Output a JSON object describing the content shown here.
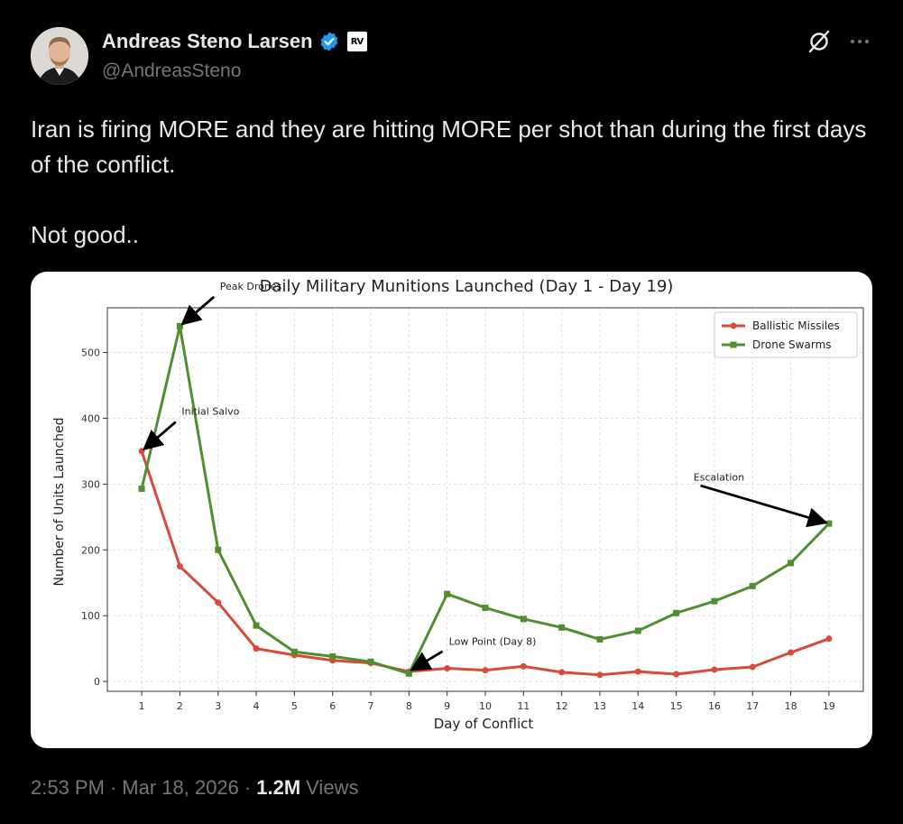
{
  "author": {
    "display_name": "Andreas Steno Larsen",
    "handle": "@AndreasSteno",
    "verified": true,
    "affiliate_badge": "RV"
  },
  "tweet": {
    "paragraphs": [
      "Iran is firing MORE and they are hitting MORE per shot than during the first days of the conflict.",
      "Not good.."
    ]
  },
  "footer": {
    "time": "2:53 PM",
    "sep1": "·",
    "date": "Mar 18, 2026",
    "sep2": "·",
    "views_count": "1.2M",
    "views_label": "Views"
  },
  "icons": {
    "grok": "grok-icon",
    "more": "more-icon",
    "verified": "verified-badge-icon"
  },
  "colors": {
    "background": "#000000",
    "text": "#e7e9ea",
    "muted": "#71767b",
    "verified": "#1d9bf0",
    "ballistic": "#d94a3d",
    "drone": "#4f8f2f"
  },
  "chart_data": {
    "type": "line",
    "title": "Daily Military Munitions Launched (Day 1 - Day 19)",
    "xlabel": "Day of Conflict",
    "ylabel": "Number of Units Launched",
    "x": [
      1,
      2,
      3,
      4,
      5,
      6,
      7,
      8,
      9,
      10,
      11,
      12,
      13,
      14,
      15,
      16,
      17,
      18,
      19
    ],
    "xlim": [
      0.1,
      19.9
    ],
    "ylim": [
      -15,
      568
    ],
    "yticks": [
      0,
      100,
      200,
      300,
      400,
      500
    ],
    "grid": true,
    "legend": "top-right",
    "series": [
      {
        "name": "Ballistic Missiles",
        "color": "#d94a3d",
        "values": [
          350,
          175,
          120,
          50,
          40,
          32,
          28,
          15,
          20,
          17,
          23,
          14,
          10,
          15,
          11,
          18,
          22,
          44,
          65
        ]
      },
      {
        "name": "Drone Swarms",
        "color": "#4f8f2f",
        "values": [
          293,
          540,
          200,
          85,
          45,
          38,
          30,
          12,
          133,
          112,
          95,
          82,
          64,
          77,
          104,
          122,
          145,
          180,
          240
        ]
      }
    ],
    "annotations": [
      {
        "text": "Peak Drones",
        "x": 2,
        "y": 540,
        "text_x": 3,
        "text_y": 590
      },
      {
        "text": "Initial Salvo",
        "x": 1,
        "y": 350,
        "text_x": 2,
        "text_y": 400
      },
      {
        "text": "Low Point (Day 8)",
        "x": 8,
        "y": 15,
        "text_x": 9,
        "text_y": 50
      },
      {
        "text": "Escalation",
        "x": 19,
        "y": 240,
        "text_x": 15.5,
        "text_y": 300
      }
    ]
  }
}
